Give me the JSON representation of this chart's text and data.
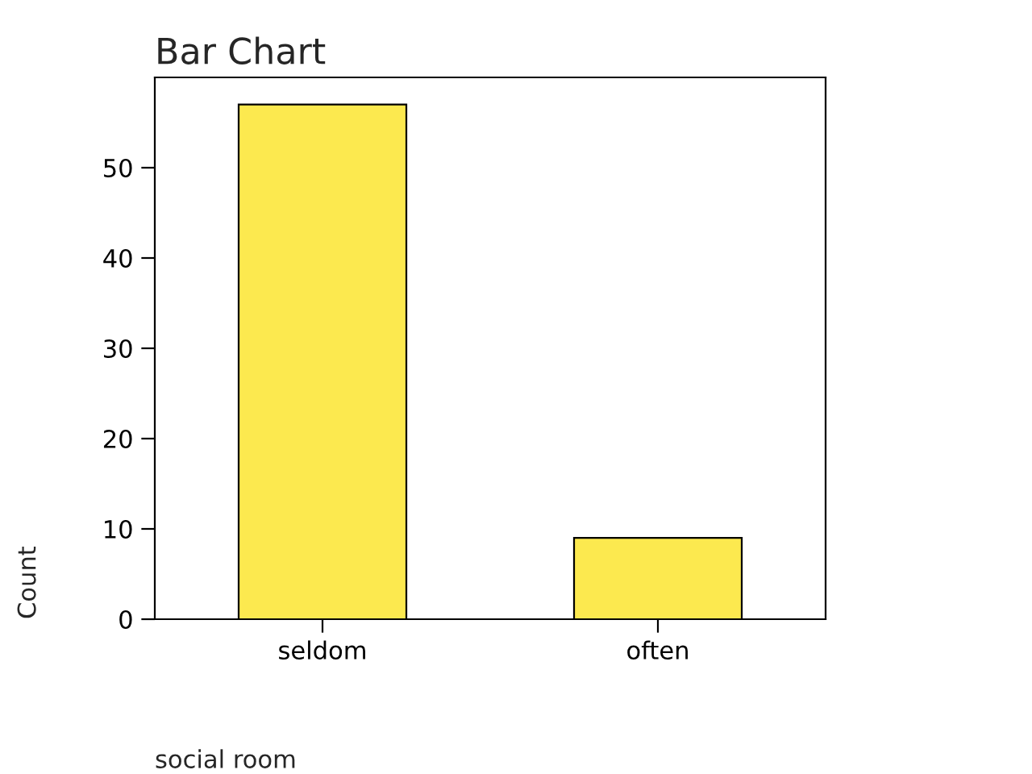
{
  "chart_data": {
    "type": "bar",
    "title": "Bar Chart",
    "xlabel": "social room",
    "ylabel": "Count",
    "categories": [
      "seldom",
      "often"
    ],
    "values": [
      57,
      9
    ],
    "color": "#fce94f",
    "ylim": [
      0,
      60
    ],
    "yticks": [
      0,
      10,
      20,
      30,
      40,
      50
    ],
    "grid": false,
    "legend": false
  }
}
